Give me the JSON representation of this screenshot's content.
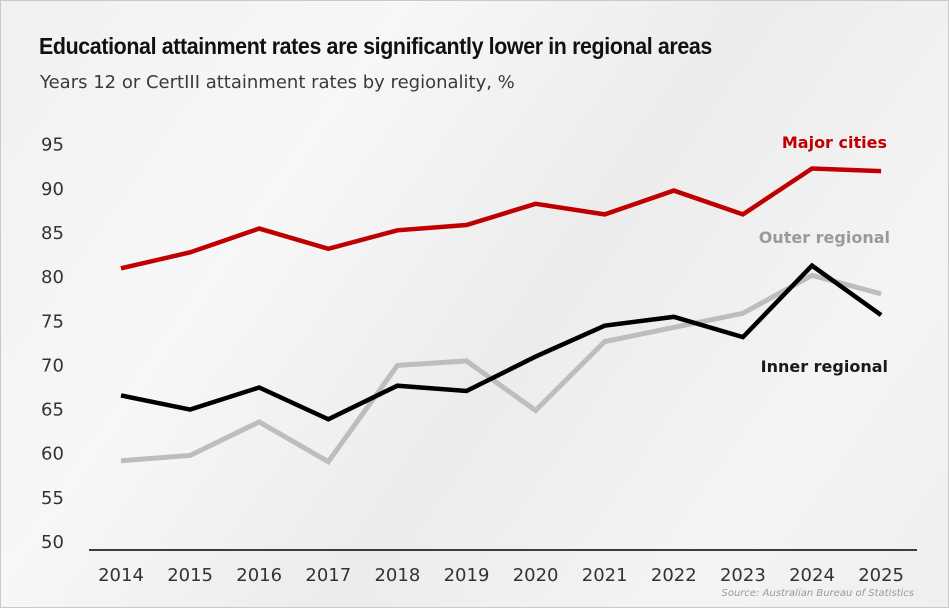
{
  "title": "Educational attainment rates are significantly lower in regional areas",
  "subtitle": "Years 12 or CertIII attainment rates by regionality, %",
  "source": "Source: Australian Bureau of Statistics",
  "chart_data": {
    "type": "line",
    "x": [
      2014,
      2015,
      2016,
      2017,
      2018,
      2019,
      2020,
      2021,
      2022,
      2023,
      2024,
      2025
    ],
    "yticks": [
      50,
      55,
      60,
      65,
      70,
      75,
      80,
      85,
      90,
      95
    ],
    "ylim": [
      50,
      95
    ],
    "grid": false,
    "legend": "inline labels at right",
    "series": [
      {
        "name": "Major cities",
        "color": "#c00000",
        "values": [
          81.0,
          82.8,
          85.5,
          83.2,
          85.3,
          85.9,
          88.3,
          87.1,
          89.8,
          87.1,
          92.3,
          92.0
        ]
      },
      {
        "name": "Outer regional",
        "color": "#bdbdbd",
        "values": [
          59.2,
          59.8,
          63.6,
          59.1,
          70.0,
          70.5,
          64.9,
          72.7,
          74.3,
          75.9,
          80.2,
          78.1
        ]
      },
      {
        "name": "Inner regional",
        "color": "#000000",
        "values": [
          66.6,
          65.0,
          67.5,
          63.9,
          67.7,
          67.1,
          71.0,
          74.5,
          75.5,
          73.2,
          81.3,
          75.7
        ]
      }
    ]
  }
}
